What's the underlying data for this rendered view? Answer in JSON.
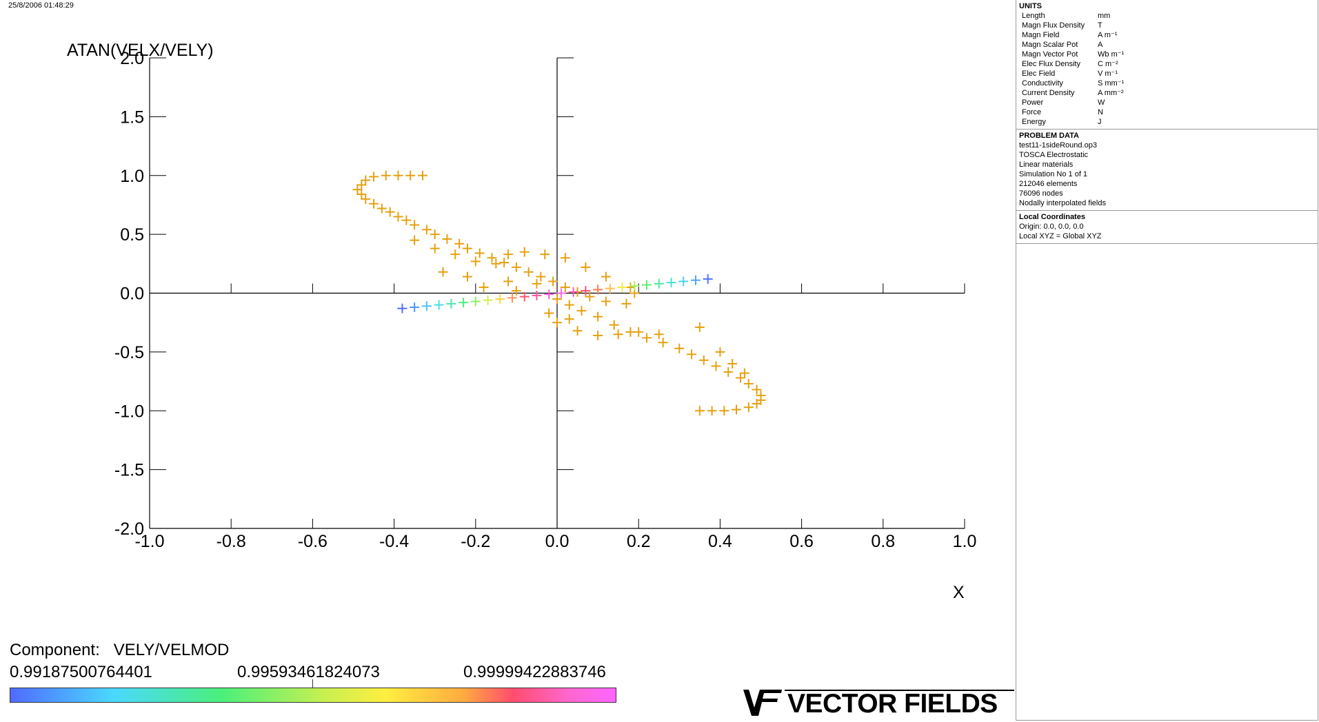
{
  "timestamp": "25/8/2006 01:48:29",
  "units": {
    "heading": "UNITS",
    "rows": [
      {
        "name": "Length",
        "unit": "mm"
      },
      {
        "name": "Magn Flux Density",
        "unit": "T"
      },
      {
        "name": "Magn Field",
        "unit": "A m⁻¹"
      },
      {
        "name": "Magn Scalar Pot",
        "unit": "A"
      },
      {
        "name": "Magn Vector Pot",
        "unit": "Wb m⁻¹"
      },
      {
        "name": "Elec Flux Density",
        "unit": "C m⁻²"
      },
      {
        "name": "Elec Field",
        "unit": "V m⁻¹"
      },
      {
        "name": "Conductivity",
        "unit": "S mm⁻¹"
      },
      {
        "name": "Current Density",
        "unit": "A mm⁻²"
      },
      {
        "name": "Power",
        "unit": "W"
      },
      {
        "name": "Force",
        "unit": "N"
      },
      {
        "name": "Energy",
        "unit": "J"
      }
    ]
  },
  "problem_data": {
    "heading": "PROBLEM DATA",
    "lines": [
      "test11-1sideRound.op3",
      "TOSCA Electrostatic",
      "Linear materials",
      "Simulation No 1 of 1",
      "212046 elements",
      "76096 nodes",
      "Nodally interpolated fields"
    ]
  },
  "local_coordinates": {
    "heading": "Local Coordinates",
    "lines": [
      "Origin: 0.0, 0.0, 0.0",
      "Local XYZ = Global XYZ"
    ]
  },
  "legend": {
    "component_label": "Component:",
    "component_name": "VELY/VELMOD",
    "min": "0.99187500764401",
    "mid": "0.99593461824073",
    "max": "0.99999422883746"
  },
  "brand": "VECTOR FIELDS",
  "colors": {
    "orange_series": "#e6a010",
    "axis": "#000000",
    "colormap": [
      "#4f6bff",
      "#4ad8ff",
      "#4bf07a",
      "#ffee40",
      "#ff4d6e",
      "#ff66ff"
    ]
  },
  "chart_data": {
    "type": "scatter",
    "marker": "plus",
    "xlabel": "X",
    "ylabel": "ATAN(VELX/VELY)",
    "xlim": [
      -1.0,
      1.0
    ],
    "ylim": [
      -2.0,
      2.0
    ],
    "xticks": [
      "-1.0",
      "-0.8",
      "-0.6",
      "-0.4",
      "-0.2",
      "0.0",
      "0.2",
      "0.4",
      "0.6",
      "0.8",
      "1.0"
    ],
    "yticks": [
      "2.0",
      "1.5",
      "1.0",
      "0.5",
      "0.0",
      "-0.5",
      "-1.0",
      "-1.5",
      "-2.0"
    ],
    "series": [
      {
        "color": "#e6a010",
        "points": [
          [
            -0.33,
            1.0
          ],
          [
            -0.36,
            1.0
          ],
          [
            -0.39,
            1.0
          ],
          [
            -0.42,
            1.0
          ],
          [
            -0.45,
            0.99
          ],
          [
            -0.47,
            0.96
          ],
          [
            -0.48,
            0.92
          ],
          [
            -0.49,
            0.88
          ],
          [
            -0.48,
            0.84
          ],
          [
            -0.47,
            0.8
          ],
          [
            -0.45,
            0.76
          ],
          [
            -0.43,
            0.72
          ],
          [
            -0.41,
            0.69
          ],
          [
            -0.39,
            0.65
          ],
          [
            -0.37,
            0.62
          ],
          [
            -0.35,
            0.58
          ],
          [
            -0.32,
            0.54
          ],
          [
            -0.3,
            0.5
          ],
          [
            -0.27,
            0.46
          ],
          [
            -0.24,
            0.42
          ],
          [
            -0.22,
            0.38
          ],
          [
            -0.19,
            0.34
          ],
          [
            -0.16,
            0.3
          ],
          [
            -0.13,
            0.26
          ],
          [
            -0.1,
            0.22
          ],
          [
            -0.07,
            0.18
          ],
          [
            -0.04,
            0.14
          ],
          [
            -0.01,
            0.1
          ],
          [
            0.02,
            0.05
          ],
          [
            0.05,
            0.01
          ],
          [
            -0.35,
            0.45
          ],
          [
            -0.3,
            0.38
          ],
          [
            -0.25,
            0.33
          ],
          [
            -0.2,
            0.27
          ],
          [
            -0.15,
            0.25
          ],
          [
            -0.12,
            0.33
          ],
          [
            -0.08,
            0.35
          ],
          [
            -0.03,
            0.33
          ],
          [
            0.02,
            0.3
          ],
          [
            0.07,
            0.22
          ],
          [
            0.12,
            0.14
          ],
          [
            0.18,
            0.05
          ],
          [
            -0.28,
            0.18
          ],
          [
            -0.22,
            0.14
          ],
          [
            -0.18,
            0.05
          ],
          [
            -0.12,
            0.1
          ],
          [
            -0.05,
            0.08
          ],
          [
            0.0,
            -0.05
          ],
          [
            0.03,
            -0.1
          ],
          [
            0.06,
            -0.15
          ],
          [
            0.1,
            -0.2
          ],
          [
            0.14,
            -0.27
          ],
          [
            0.18,
            -0.33
          ],
          [
            0.22,
            -0.38
          ],
          [
            0.26,
            -0.42
          ],
          [
            0.3,
            -0.47
          ],
          [
            0.33,
            -0.52
          ],
          [
            0.36,
            -0.57
          ],
          [
            0.39,
            -0.62
          ],
          [
            0.42,
            -0.67
          ],
          [
            0.45,
            -0.72
          ],
          [
            0.47,
            -0.77
          ],
          [
            0.49,
            -0.82
          ],
          [
            0.5,
            -0.87
          ],
          [
            0.5,
            -0.91
          ],
          [
            0.49,
            -0.94
          ],
          [
            0.47,
            -0.97
          ],
          [
            0.44,
            -0.99
          ],
          [
            0.41,
            -1.0
          ],
          [
            0.38,
            -1.0
          ],
          [
            0.35,
            -1.0
          ],
          [
            0.0,
            -0.25
          ],
          [
            0.05,
            -0.32
          ],
          [
            0.1,
            -0.36
          ],
          [
            0.15,
            -0.35
          ],
          [
            0.2,
            -0.33
          ],
          [
            0.25,
            -0.35
          ],
          [
            0.19,
            0.0
          ],
          [
            0.17,
            -0.09
          ],
          [
            0.12,
            -0.07
          ],
          [
            0.08,
            -0.03
          ],
          [
            0.35,
            -0.29
          ],
          [
            0.4,
            -0.5
          ],
          [
            0.43,
            -0.6
          ],
          [
            0.46,
            -0.68
          ],
          [
            -0.02,
            -0.17
          ],
          [
            0.03,
            -0.22
          ],
          [
            -0.1,
            0.02
          ],
          [
            0.1,
            0.03
          ]
        ]
      },
      {
        "color": "gradient",
        "points": [
          [
            -0.38,
            -0.13
          ],
          [
            -0.35,
            -0.12
          ],
          [
            -0.32,
            -0.11
          ],
          [
            -0.29,
            -0.1
          ],
          [
            -0.26,
            -0.09
          ],
          [
            -0.23,
            -0.08
          ],
          [
            -0.2,
            -0.07
          ],
          [
            -0.17,
            -0.06
          ],
          [
            -0.14,
            -0.05
          ],
          [
            -0.11,
            -0.04
          ],
          [
            -0.08,
            -0.03
          ],
          [
            -0.05,
            -0.02
          ],
          [
            -0.02,
            -0.01
          ],
          [
            0.01,
            0.0
          ],
          [
            0.04,
            0.01
          ],
          [
            0.07,
            0.02
          ],
          [
            0.1,
            0.03
          ],
          [
            0.13,
            0.04
          ],
          [
            0.16,
            0.05
          ],
          [
            0.19,
            0.06
          ],
          [
            0.22,
            0.07
          ],
          [
            0.25,
            0.08
          ],
          [
            0.28,
            0.09
          ],
          [
            0.31,
            0.1
          ],
          [
            0.34,
            0.11
          ],
          [
            0.37,
            0.12
          ]
        ]
      }
    ]
  }
}
